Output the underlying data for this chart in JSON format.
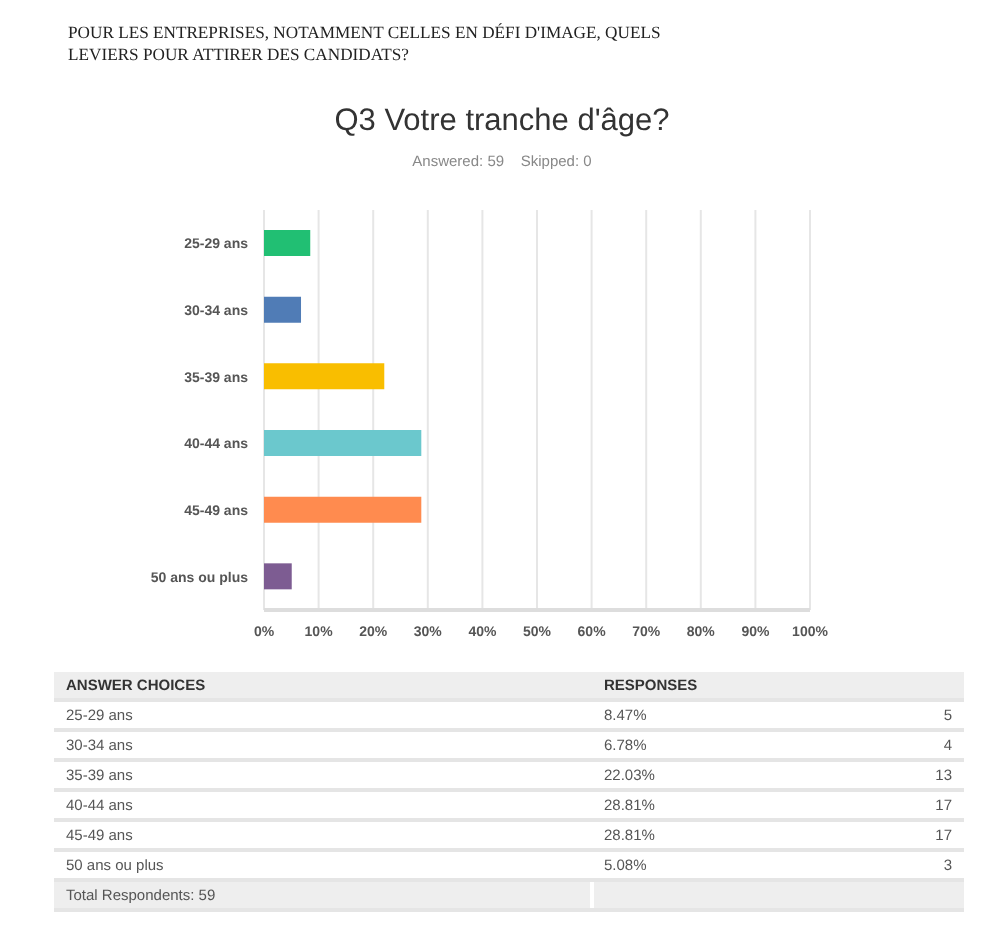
{
  "chart_data": {
    "type": "bar",
    "orientation": "horizontal",
    "title": "Q3 Votre tranche d'âge?",
    "subtitle": "Answered: 59    Skipped: 0",
    "categories": [
      "25-29 ans",
      "30-34 ans",
      "35-39 ans",
      "40-44 ans",
      "45-49 ans",
      "50 ans ou plus"
    ],
    "values": [
      8.47,
      6.78,
      22.03,
      28.81,
      28.81,
      5.08
    ],
    "colors": [
      "#21bf73",
      "#507cb6",
      "#f9be00",
      "#6bc8cd",
      "#ff8b4f",
      "#7d5c92"
    ],
    "xlim": [
      0,
      100
    ],
    "xticks": [
      {
        "value": 0,
        "label": "0%"
      },
      {
        "value": 10,
        "label": "10%"
      },
      {
        "value": 20,
        "label": "20%"
      },
      {
        "value": 30,
        "label": "30%"
      },
      {
        "value": 40,
        "label": "40%"
      },
      {
        "value": 50,
        "label": "50%"
      },
      {
        "value": 60,
        "label": "60%"
      },
      {
        "value": 70,
        "label": "70%"
      },
      {
        "value": 80,
        "label": "80%"
      },
      {
        "value": 90,
        "label": "90%"
      },
      {
        "value": 100,
        "label": "100%"
      }
    ],
    "grid": "x",
    "annotations": [
      "POUR LES ENTREPRISES, NOTAMMENT CELLES EN DÉFI D'IMAGE, QUELS LEVIERS POUR ATTIRER DES CANDIDATS?",
      "ANSWER CHOICES",
      "RESPONSES",
      "8.47%",
      "6.78%",
      "22.03%",
      "28.81%",
      "28.81%",
      "5.08%",
      "5",
      "4",
      "13",
      "17",
      "17",
      "3",
      "Total Respondents: 59"
    ]
  }
}
